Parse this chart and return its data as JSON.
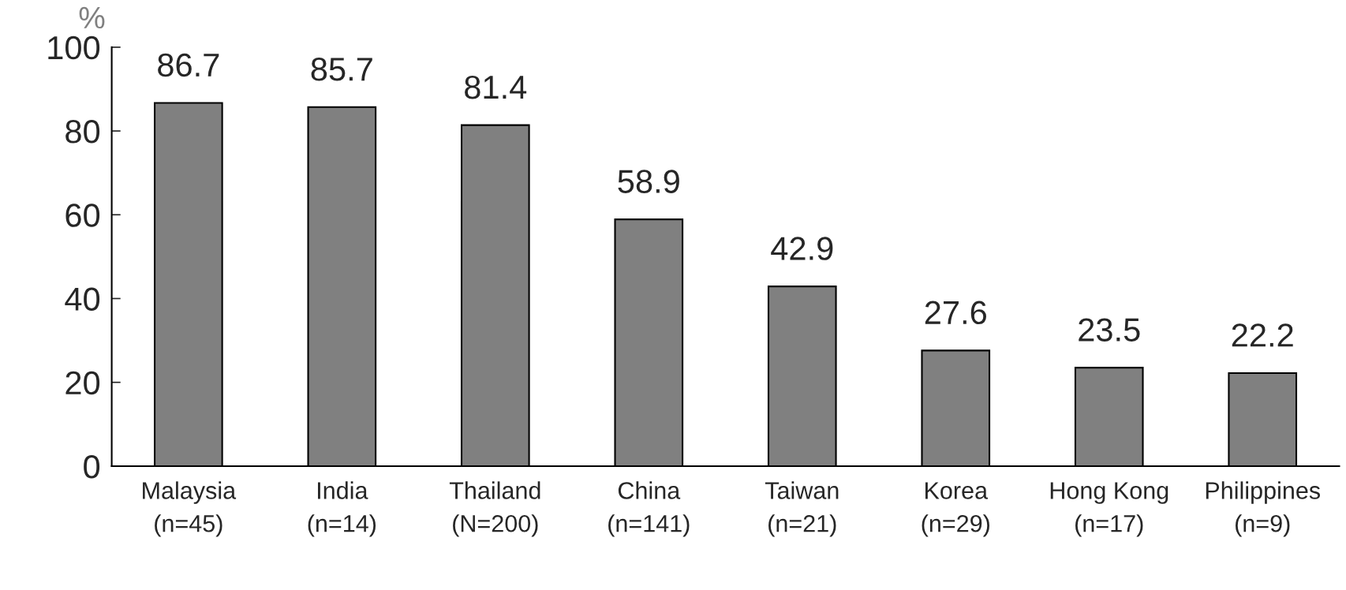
{
  "chart_data": {
    "type": "bar",
    "ylabel": "%",
    "categories": [
      "Malaysia\n(n=45)",
      "India\n(n=14)",
      "Thailand\n(N=200)",
      "China\n(n=141)",
      "Taiwan\n(n=21)",
      "Korea\n(n=29)",
      "Hong Kong\n(n=17)",
      "Philippines\n(n=9)"
    ],
    "values": [
      86.7,
      85.7,
      81.4,
      58.9,
      42.9,
      27.6,
      23.5,
      22.2
    ],
    "color": "#808080",
    "ylim": [
      0,
      100
    ],
    "yticks": [
      0,
      20,
      40,
      60,
      80,
      100
    ],
    "data_labels": true,
    "grid": false,
    "legend": false
  }
}
